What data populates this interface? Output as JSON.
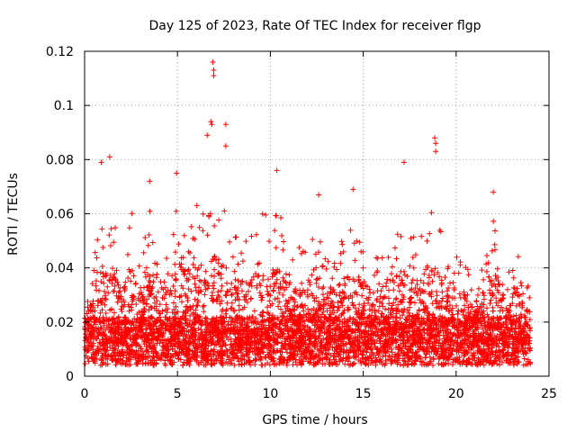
{
  "chart_data": {
    "type": "scatter",
    "title": "Day 125 of 2023, Rate Of TEC Index for receiver flgp",
    "xlabel": "GPS time / hours",
    "ylabel": "ROTI / TECUs",
    "xlim": [
      0,
      25
    ],
    "ylim": [
      0,
      0.12
    ],
    "x_ticks": [
      0,
      5,
      10,
      15,
      20,
      25
    ],
    "y_ticks": [
      0,
      0.02,
      0.04,
      0.06,
      0.08,
      0.1,
      0.12
    ],
    "x_tick_labels": [
      "0",
      "5",
      "10",
      "15",
      "20",
      "25"
    ],
    "y_tick_labels": [
      "0",
      "0.02",
      "0.04",
      "0.06",
      "0.08",
      "0.1",
      "0.12"
    ],
    "grid": true,
    "marker": "+",
    "color": "#ff0000",
    "data_x_range_hours": [
      0,
      24
    ],
    "base_level": 0.012,
    "notable_points": [
      {
        "x": 6.9,
        "y": 0.116
      },
      {
        "x": 6.95,
        "y": 0.113
      },
      {
        "x": 6.95,
        "y": 0.111
      },
      {
        "x": 6.8,
        "y": 0.094
      },
      {
        "x": 6.85,
        "y": 0.093
      },
      {
        "x": 7.6,
        "y": 0.093
      },
      {
        "x": 6.6,
        "y": 0.089
      },
      {
        "x": 18.85,
        "y": 0.088
      },
      {
        "x": 18.9,
        "y": 0.086
      },
      {
        "x": 7.6,
        "y": 0.085
      },
      {
        "x": 18.9,
        "y": 0.083
      },
      {
        "x": 1.35,
        "y": 0.081
      },
      {
        "x": 17.2,
        "y": 0.079
      },
      {
        "x": 0.9,
        "y": 0.079
      },
      {
        "x": 10.35,
        "y": 0.076
      },
      {
        "x": 4.95,
        "y": 0.075
      },
      {
        "x": 3.5,
        "y": 0.072
      },
      {
        "x": 14.45,
        "y": 0.069
      },
      {
        "x": 22.0,
        "y": 0.068
      },
      {
        "x": 12.6,
        "y": 0.067
      }
    ],
    "envelope": [
      {
        "x": 0.0,
        "max": 0.022
      },
      {
        "x": 0.5,
        "max": 0.045
      },
      {
        "x": 1.0,
        "max": 0.066
      },
      {
        "x": 1.5,
        "max": 0.06
      },
      {
        "x": 2.0,
        "max": 0.046
      },
      {
        "x": 2.5,
        "max": 0.062
      },
      {
        "x": 3.0,
        "max": 0.045
      },
      {
        "x": 3.5,
        "max": 0.062
      },
      {
        "x": 4.0,
        "max": 0.045
      },
      {
        "x": 4.5,
        "max": 0.05
      },
      {
        "x": 5.0,
        "max": 0.068
      },
      {
        "x": 5.5,
        "max": 0.06
      },
      {
        "x": 6.0,
        "max": 0.064
      },
      {
        "x": 6.5,
        "max": 0.06
      },
      {
        "x": 7.0,
        "max": 0.07
      },
      {
        "x": 7.5,
        "max": 0.062
      },
      {
        "x": 8.0,
        "max": 0.062
      },
      {
        "x": 8.5,
        "max": 0.05
      },
      {
        "x": 9.0,
        "max": 0.052
      },
      {
        "x": 9.5,
        "max": 0.062
      },
      {
        "x": 10.0,
        "max": 0.058
      },
      {
        "x": 10.5,
        "max": 0.062
      },
      {
        "x": 11.0,
        "max": 0.045
      },
      {
        "x": 11.5,
        "max": 0.048
      },
      {
        "x": 12.0,
        "max": 0.052
      },
      {
        "x": 12.5,
        "max": 0.062
      },
      {
        "x": 13.0,
        "max": 0.042
      },
      {
        "x": 13.5,
        "max": 0.046
      },
      {
        "x": 14.0,
        "max": 0.052
      },
      {
        "x": 14.5,
        "max": 0.058
      },
      {
        "x": 15.0,
        "max": 0.052
      },
      {
        "x": 15.5,
        "max": 0.044
      },
      {
        "x": 16.0,
        "max": 0.046
      },
      {
        "x": 16.5,
        "max": 0.056
      },
      {
        "x": 17.0,
        "max": 0.054
      },
      {
        "x": 17.5,
        "max": 0.056
      },
      {
        "x": 18.0,
        "max": 0.05
      },
      {
        "x": 18.5,
        "max": 0.062
      },
      {
        "x": 19.0,
        "max": 0.058
      },
      {
        "x": 19.5,
        "max": 0.045
      },
      {
        "x": 20.0,
        "max": 0.045
      },
      {
        "x": 20.5,
        "max": 0.045
      },
      {
        "x": 21.0,
        "max": 0.04
      },
      {
        "x": 21.5,
        "max": 0.044
      },
      {
        "x": 22.0,
        "max": 0.058
      },
      {
        "x": 22.5,
        "max": 0.045
      },
      {
        "x": 23.0,
        "max": 0.048
      },
      {
        "x": 23.5,
        "max": 0.044
      },
      {
        "x": 24.0,
        "max": 0.038
      }
    ]
  }
}
